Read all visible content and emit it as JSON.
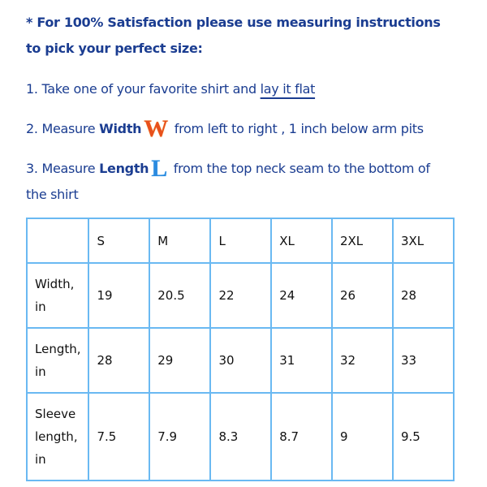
{
  "intro": {
    "line1": "* For 100% Satisfaction please use measuring instructions",
    "line2": "to pick your perfect size:"
  },
  "steps": [
    {
      "prefix": "1. Take one of your favorite shirt and ",
      "link": "lay it flat"
    },
    {
      "prefix": "2. Measure ",
      "bold": "Width",
      "icon_letter": "W",
      "suffix": " from left to right , 1 inch below arm pits"
    },
    {
      "prefix": "3. Measure ",
      "bold": "Length",
      "icon_letter": "L",
      "suffix": " from the top neck seam to the bottom of",
      "continuation": "the shirt"
    }
  ],
  "colors": {
    "text": "#1b3d91",
    "table_border": "#6ab9f2",
    "width_icon": "#e8501c",
    "length_icon": "#2a8be0"
  },
  "table": {
    "headers": [
      "",
      "S",
      "M",
      "L",
      "XL",
      "2XL",
      "3XL"
    ],
    "rows": [
      {
        "label": [
          "Width,",
          "in"
        ],
        "values": [
          "19",
          "20.5",
          "22",
          "24",
          "26",
          "28"
        ]
      },
      {
        "label": [
          "Length,",
          "in"
        ],
        "values": [
          "28",
          "29",
          "30",
          "31",
          "32",
          "33"
        ]
      },
      {
        "label": [
          "Sleeve",
          "length,",
          "in"
        ],
        "values": [
          "7.5",
          "7.9",
          "8.3",
          "8.7",
          "9",
          "9.5"
        ]
      }
    ]
  }
}
